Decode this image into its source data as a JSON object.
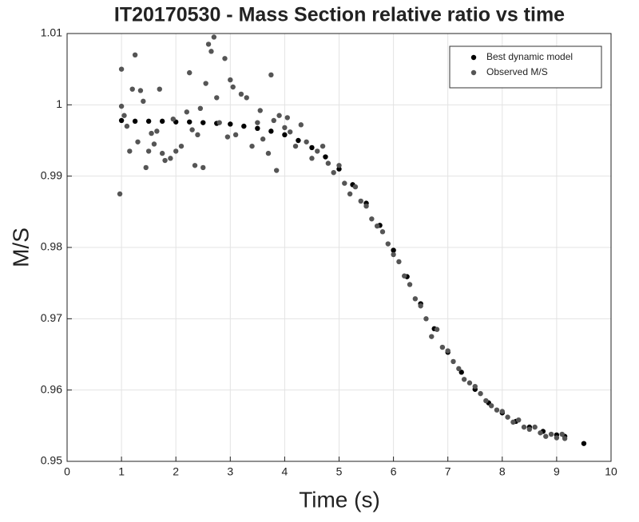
{
  "chart_data": {
    "type": "scatter",
    "title": "IT20170530 - Mass Section relative ratio vs time",
    "xlabel": "Time (s)",
    "ylabel": "M/S",
    "xlim": [
      0,
      10
    ],
    "xticks": [
      0,
      1,
      2,
      3,
      4,
      5,
      6,
      7,
      8,
      9,
      10
    ],
    "ylim": [
      0.95,
      1.01
    ],
    "yticks": [
      0.95,
      0.96,
      0.97,
      0.98,
      0.99,
      1,
      1.01
    ],
    "grid": true,
    "legend": "northeast",
    "series": [
      {
        "name": "Best dynamic model",
        "color": "#000000",
        "x": [
          1,
          1.25,
          1.5,
          1.75,
          2,
          2.25,
          2.5,
          2.75,
          3,
          3.25,
          3.5,
          3.75,
          4,
          4.25,
          4.5,
          4.75,
          5,
          5.25,
          5.5,
          5.75,
          6,
          6.25,
          6.5,
          6.75,
          7,
          7.25,
          7.5,
          7.75,
          8,
          8.25,
          8.5,
          8.75,
          9,
          9.15,
          9.5
        ],
        "values": [
          0.9978,
          0.9977,
          0.9977,
          0.9977,
          0.9976,
          0.9976,
          0.9975,
          0.9974,
          0.9973,
          0.997,
          0.9967,
          0.9963,
          0.9958,
          0.995,
          0.994,
          0.9927,
          0.991,
          0.9888,
          0.9862,
          0.9831,
          0.9796,
          0.9759,
          0.9721,
          0.9686,
          0.9653,
          0.9625,
          0.9601,
          0.9582,
          0.9568,
          0.9556,
          0.9548,
          0.9542,
          0.9537,
          0.9535,
          0.9525
        ]
      },
      {
        "name": "Observed M/S",
        "color": "#555555",
        "x": [
          0.97,
          1,
          1,
          1.05,
          1.1,
          1.15,
          1.2,
          1.25,
          1.3,
          1.35,
          1.4,
          1.45,
          1.5,
          1.55,
          1.6,
          1.65,
          1.7,
          1.75,
          1.8,
          1.9,
          1.95,
          2,
          2.1,
          2.2,
          2.25,
          2.3,
          2.35,
          2.4,
          2.45,
          2.5,
          2.55,
          2.6,
          2.65,
          2.7,
          2.75,
          2.8,
          2.9,
          2.95,
          3,
          3.05,
          3.1,
          3.2,
          3.3,
          3.4,
          3.5,
          3.55,
          3.6,
          3.7,
          3.75,
          3.8,
          3.85,
          3.9,
          4,
          4.05,
          4.1,
          4.2,
          4.3,
          4.4,
          4.5,
          4.6,
          4.7,
          4.8,
          4.9,
          5,
          5.1,
          5.2,
          5.3,
          5.4,
          5.5,
          5.6,
          5.7,
          5.8,
          5.9,
          6,
          6.1,
          6.2,
          6.3,
          6.4,
          6.5,
          6.6,
          6.7,
          6.8,
          6.9,
          7,
          7.1,
          7.2,
          7.3,
          7.4,
          7.5,
          7.6,
          7.7,
          7.8,
          7.9,
          8,
          8.1,
          8.2,
          8.3,
          8.4,
          8.5,
          8.6,
          8.7,
          8.8,
          8.9,
          9,
          9.1,
          9.15
        ],
        "values": [
          0.9875,
          1.005,
          0.9998,
          0.9985,
          0.997,
          0.9935,
          1.0022,
          1.007,
          0.9948,
          1.002,
          1.0005,
          0.9912,
          0.9935,
          0.996,
          0.9945,
          0.9963,
          1.0022,
          0.9932,
          0.9922,
          0.9925,
          0.998,
          0.9935,
          0.9942,
          0.999,
          1.0045,
          0.9965,
          0.9915,
          0.9958,
          0.9995,
          0.9912,
          1.003,
          1.0085,
          1.0075,
          1.0095,
          1.001,
          0.9975,
          1.0065,
          0.9955,
          1.0035,
          1.0025,
          0.9958,
          1.0015,
          1.001,
          0.9942,
          0.9975,
          0.9992,
          0.9952,
          0.9932,
          1.0042,
          0.9978,
          0.9908,
          0.9985,
          0.9968,
          0.9982,
          0.9962,
          0.9942,
          0.9972,
          0.9948,
          0.9925,
          0.9935,
          0.9942,
          0.9918,
          0.9905,
          0.9915,
          0.989,
          0.9875,
          0.9885,
          0.9865,
          0.9858,
          0.984,
          0.983,
          0.9822,
          0.9805,
          0.979,
          0.978,
          0.976,
          0.9748,
          0.9728,
          0.9718,
          0.97,
          0.9675,
          0.9685,
          0.966,
          0.9655,
          0.964,
          0.963,
          0.9615,
          0.961,
          0.9605,
          0.9595,
          0.9585,
          0.9578,
          0.9572,
          0.957,
          0.9562,
          0.9555,
          0.9558,
          0.9548,
          0.9545,
          0.9548,
          0.954,
          0.9535,
          0.9538,
          0.9533,
          0.9538,
          0.9532
        ]
      }
    ]
  }
}
